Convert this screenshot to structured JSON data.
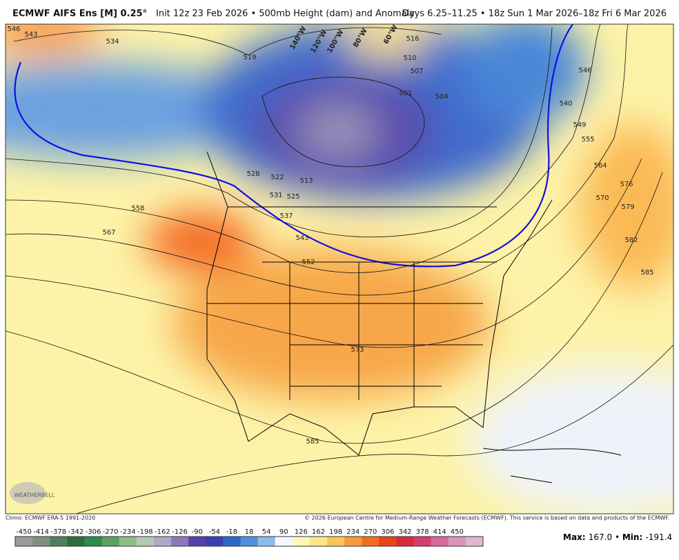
{
  "header": {
    "title": "ECMWF AIFS Ens [M] 0.25°",
    "subtitle": "Init 12z 23 Feb 2026 • 500mb Height (dam) and Anomaly",
    "valid": "Days 6.25–11.25 • 18z Sun 1 Mar 2026–18z Fri 6 Mar 2026"
  },
  "map": {
    "contour_labels": [
      546,
      543,
      534,
      519,
      516,
      510,
      507,
      504,
      501,
      528,
      522,
      513,
      531,
      525,
      537,
      543,
      552,
      558,
      567,
      573,
      585,
      585,
      582,
      579,
      576,
      570,
      564,
      555,
      549,
      540,
      546
    ],
    "longitude_labels": [
      "140°W",
      "120°W",
      "100°W",
      "80°W",
      "60°W"
    ],
    "logo": "WEATHERBELL"
  },
  "footer": {
    "climo": "Climo: ECMWF ERA-5 1991-2020",
    "copyright": "© 2026 European Centre for Medium-Range Weather Forecasts (ECMWF). This service is based on data and products of the ECMWF.",
    "max_label": "Max",
    "max": "167.0",
    "min_label": "Min",
    "min": "-191.4"
  },
  "colorbar": {
    "ticks": [
      -450,
      -414,
      -378,
      -342,
      -306,
      -270,
      -234,
      -198,
      -162,
      -126,
      -90,
      -54,
      -18,
      18,
      54,
      90,
      126,
      162,
      198,
      234,
      270,
      306,
      342,
      378,
      414,
      450
    ],
    "colors": [
      "#9a9a9a",
      "#7f8f80",
      "#4f7f5a",
      "#2f6b3f",
      "#2e8a4a",
      "#5aa060",
      "#8bbf85",
      "#b6c9b0",
      "#b0a7c8",
      "#8a78bb",
      "#5a3fa8",
      "#3a3fb5",
      "#2f67c9",
      "#4f8fdb",
      "#8cbcec",
      "#f4f8fc",
      "#fdf6b8",
      "#fde58a",
      "#fcc45c",
      "#f99a3a",
      "#f36c24",
      "#e8441a",
      "#d92a38",
      "#d43f6f",
      "#d8679c",
      "#dd92be",
      "#e2b6d2"
    ]
  }
}
